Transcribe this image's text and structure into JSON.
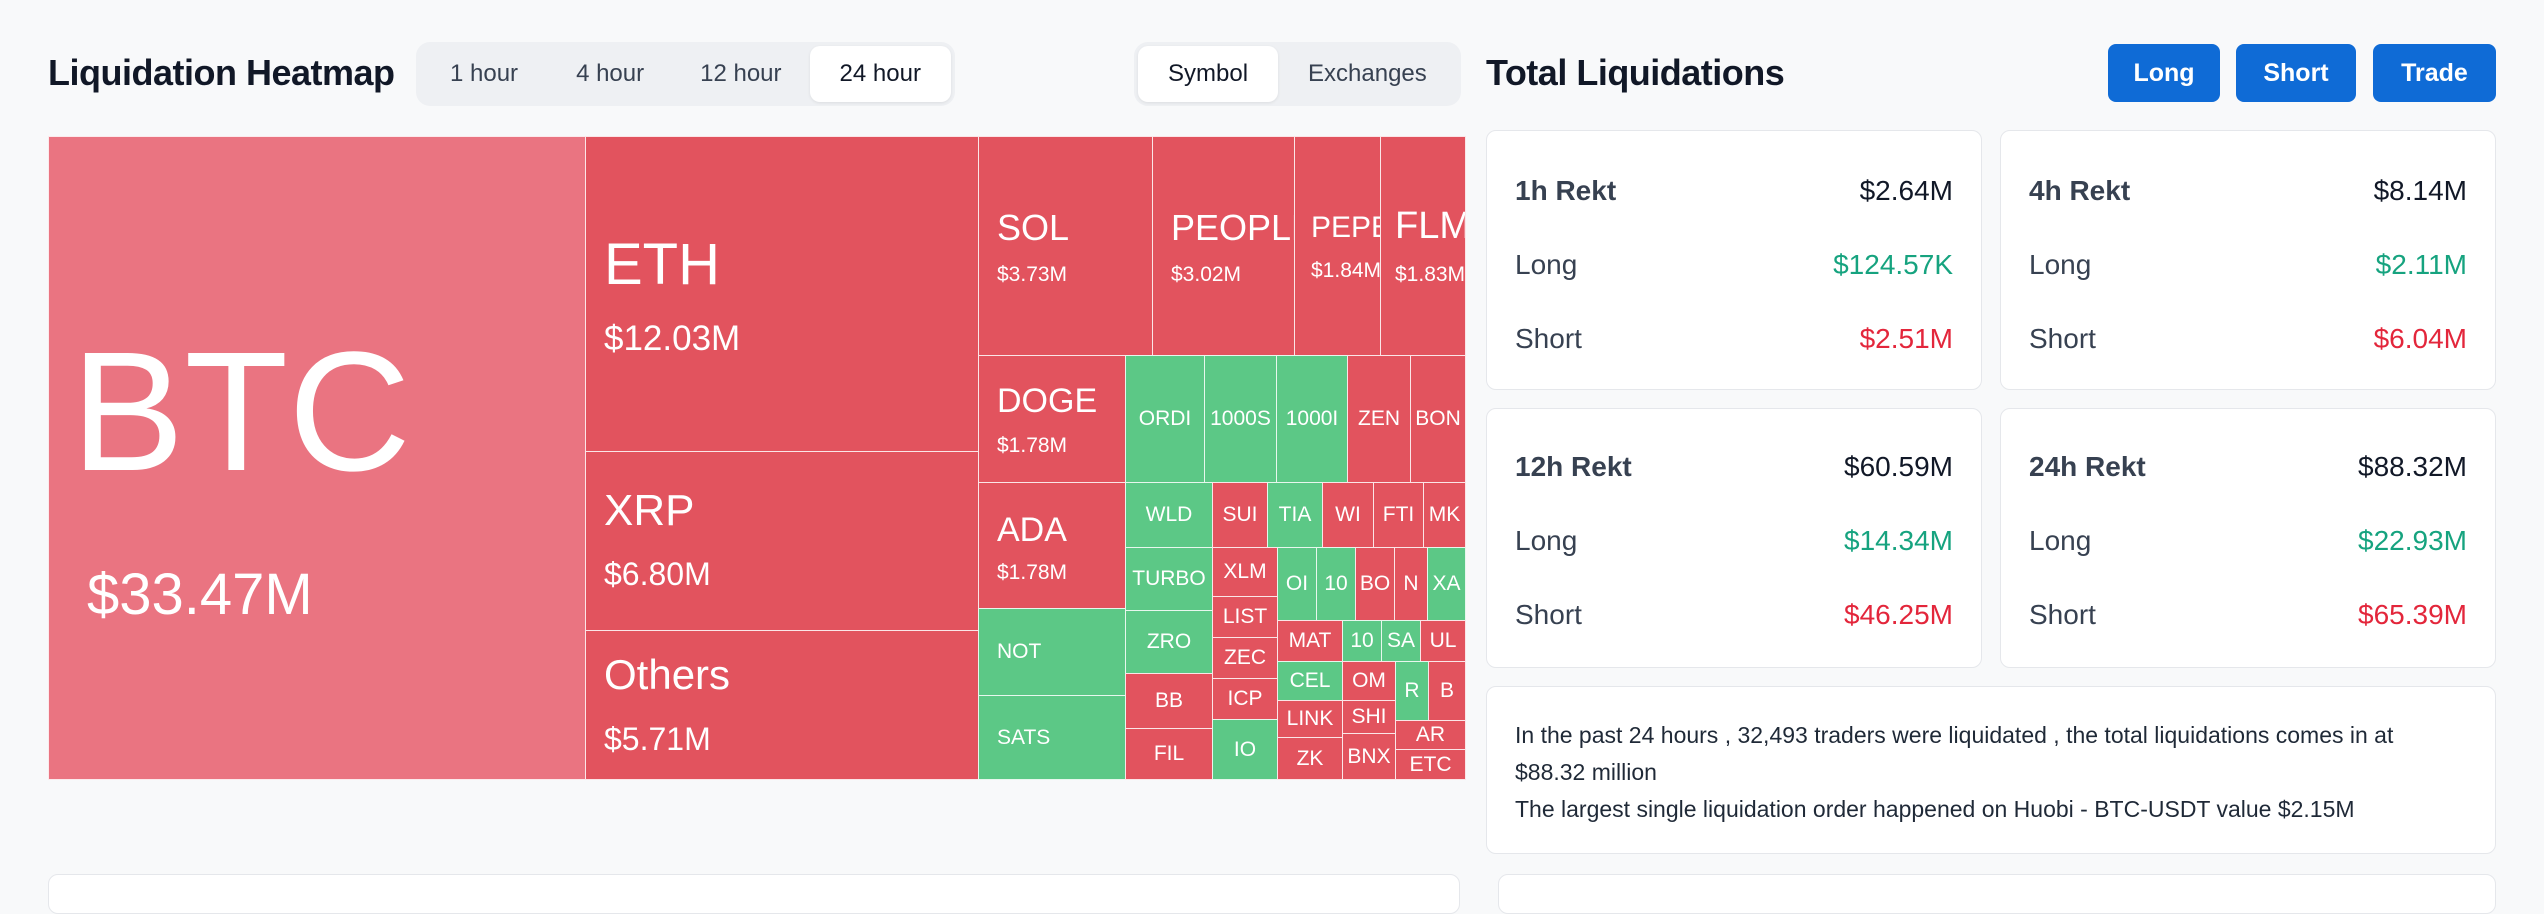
{
  "heatmap": {
    "title": "Liquidation Heatmap",
    "time_options": [
      "1 hour",
      "4 hour",
      "12 hour",
      "24 hour"
    ],
    "time_selected": "24 hour",
    "view_options": [
      "Symbol",
      "Exchanges"
    ],
    "view_selected": "Symbol",
    "tiles": {
      "btc": {
        "symbol": "BTC",
        "value": "$33.47M"
      },
      "eth": {
        "symbol": "ETH",
        "value": "$12.03M"
      },
      "xrp": {
        "symbol": "XRP",
        "value": "$6.80M"
      },
      "others": {
        "symbol": "Others",
        "value": "$5.71M"
      },
      "sol": {
        "symbol": "SOL",
        "value": "$3.73M"
      },
      "people": {
        "symbol": "PEOPLE",
        "value": "$3.02M"
      },
      "pepe": {
        "symbol": "PEPE",
        "value": "$1.84M"
      },
      "flm": {
        "symbol": "FLM",
        "value": "$1.83M"
      },
      "doge": {
        "symbol": "DOGE",
        "value": "$1.78M"
      },
      "ada": {
        "symbol": "ADA",
        "value": "$1.78M"
      },
      "small": [
        "ORDI",
        "1000S",
        "1000I",
        "ZEN",
        "BON",
        "WLD",
        "SUI",
        "TIA",
        "WI",
        "FTI",
        "MK",
        "TURBO",
        "XLM",
        "OI",
        "10",
        "BO",
        "N",
        "XA",
        "NOT",
        "ZRO",
        "LIST",
        "MAT",
        "10",
        "SA",
        "UL",
        "ZEC",
        "CEL",
        "OM",
        "R",
        "B",
        "BB",
        "ICP",
        "LINK",
        "SHI",
        "AR",
        "SATS",
        "FIL",
        "IO",
        "ZK",
        "BNX",
        "ETC"
      ]
    }
  },
  "totals": {
    "title": "Total Liquidations",
    "buttons": {
      "long": "Long",
      "short": "Short",
      "trade": "Trade"
    },
    "cards": [
      {
        "label": "1h Rekt",
        "total": "$2.64M",
        "long_label": "Long",
        "long": "$124.57K",
        "short_label": "Short",
        "short": "$2.51M"
      },
      {
        "label": "4h Rekt",
        "total": "$8.14M",
        "long_label": "Long",
        "long": "$2.11M",
        "short_label": "Short",
        "short": "$6.04M"
      },
      {
        "label": "12h Rekt",
        "total": "$60.59M",
        "long_label": "Long",
        "long": "$14.34M",
        "short_label": "Short",
        "short": "$46.25M"
      },
      {
        "label": "24h Rekt",
        "total": "$88.32M",
        "long_label": "Long",
        "long": "$22.93M",
        "short_label": "Short",
        "short": "$65.39M"
      }
    ],
    "summary_line1": "In the past 24 hours , 32,493 traders were liquidated , the total liquidations comes in at",
    "summary_line2": "$88.32 million",
    "summary_line3": "The largest single liquidation order happened on Huobi - BTC-USDT value $2.15M"
  },
  "colors": {
    "long_up": "#16a37f",
    "short_down": "#e3263b",
    "accent": "#0f6bd6",
    "red_tile": "#e2535e",
    "green_tile": "#5cc886"
  }
}
